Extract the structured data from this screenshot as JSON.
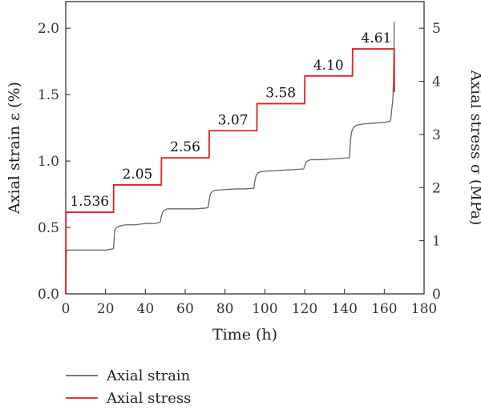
{
  "chart_data": {
    "type": "line",
    "xlabel": "Time (h)",
    "ylabel_left": "Axial strain ε (%)",
    "ylabel_right": "Axial stress σ (MPa)",
    "xlim": [
      0,
      180
    ],
    "ylim_left": [
      0,
      2.2
    ],
    "ylim_right": [
      0,
      5.5
    ],
    "x_ticks": [
      "0",
      "20",
      "40",
      "60",
      "80",
      "100",
      "120",
      "140",
      "160",
      "180"
    ],
    "y_left_ticks": [
      "0.0",
      "0.5",
      "1.0",
      "1.5",
      "2.0"
    ],
    "y_right_ticks": [
      "0",
      "1",
      "2",
      "3",
      "4",
      "5"
    ],
    "grid": false,
    "legend_position": "bottom-left",
    "series": [
      {
        "name": "Axial strain",
        "axis": "left",
        "color": "#666666",
        "x": [
          0,
          0.3,
          1,
          5,
          10,
          15,
          20,
          24,
          24.6,
          25.5,
          27,
          30,
          35,
          40,
          45,
          47.5,
          48,
          48.6,
          49.5,
          51,
          55,
          60,
          65,
          70,
          71.5,
          72,
          72.6,
          73.5,
          75,
          80,
          85,
          90,
          94.5,
          95,
          95.6,
          96.5,
          98,
          102,
          108,
          114,
          119.5,
          120,
          120.6,
          121.5,
          123,
          128,
          133,
          138,
          142.5,
          143,
          143.6,
          144.5,
          146,
          150,
          155,
          160,
          163,
          163.4,
          163.7,
          164,
          164.3,
          164.6,
          164.9,
          165
        ],
        "values": [
          0.0,
          0.32,
          0.33,
          0.33,
          0.33,
          0.33,
          0.33,
          0.34,
          0.48,
          0.5,
          0.51,
          0.52,
          0.52,
          0.53,
          0.53,
          0.54,
          0.58,
          0.61,
          0.63,
          0.64,
          0.64,
          0.64,
          0.64,
          0.645,
          0.65,
          0.7,
          0.75,
          0.77,
          0.78,
          0.785,
          0.79,
          0.79,
          0.795,
          0.85,
          0.89,
          0.91,
          0.92,
          0.925,
          0.93,
          0.935,
          0.94,
          0.96,
          0.99,
          1.0,
          1.01,
          1.01,
          1.015,
          1.02,
          1.025,
          1.15,
          1.22,
          1.25,
          1.27,
          1.28,
          1.285,
          1.29,
          1.3,
          1.33,
          1.38,
          1.42,
          1.46,
          1.6,
          1.85,
          2.05
        ]
      },
      {
        "name": "Axial stress",
        "axis": "right",
        "color": "#e02020",
        "x": [
          0,
          0.1,
          24,
          24.1,
          48,
          48.1,
          72,
          72.1,
          96,
          96.1,
          120,
          120.1,
          144,
          144.1,
          165,
          165.05
        ],
        "values": [
          0,
          1.536,
          1.536,
          2.05,
          2.05,
          2.56,
          2.56,
          3.07,
          3.07,
          3.58,
          3.58,
          4.1,
          4.1,
          4.61,
          4.61,
          3.8
        ]
      }
    ],
    "annotations": [
      {
        "text": "1.536",
        "x": 12,
        "y": 1.536
      },
      {
        "text": "2.05",
        "x": 36,
        "y": 2.05
      },
      {
        "text": "2.56",
        "x": 60,
        "y": 2.56
      },
      {
        "text": "3.07",
        "x": 84,
        "y": 3.07
      },
      {
        "text": "3.58",
        "x": 108,
        "y": 3.58
      },
      {
        "text": "4.10",
        "x": 132,
        "y": 4.1
      },
      {
        "text": "4.61",
        "x": 156,
        "y": 4.61
      }
    ]
  }
}
